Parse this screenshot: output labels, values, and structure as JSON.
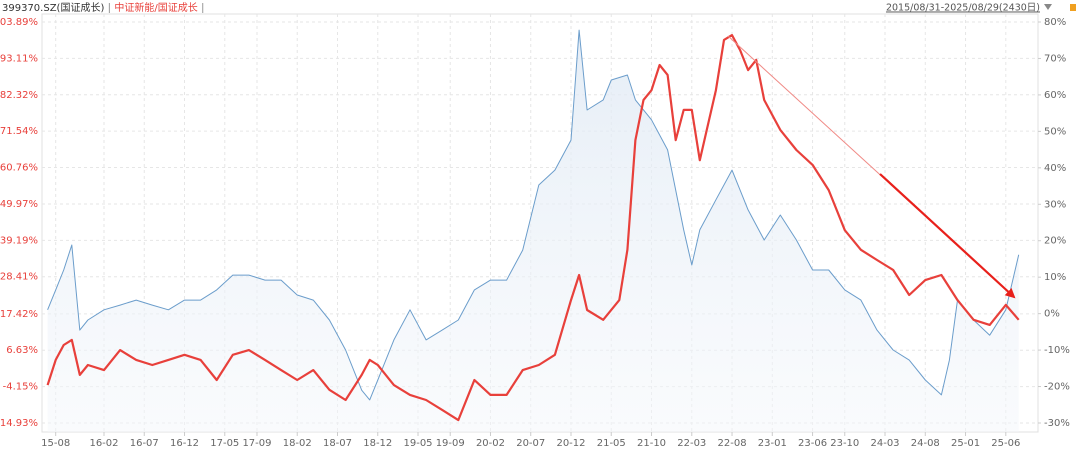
{
  "chart_data": {
    "type": "line",
    "date_range": "2015/08/31-2025/08/29(2430日)",
    "xlim": [
      -1.7,
      122
    ],
    "xticks": [
      {
        "value": 0,
        "label": "15-08"
      },
      {
        "value": 6,
        "label": "16-02"
      },
      {
        "value": 11,
        "label": "16-07"
      },
      {
        "value": 16,
        "label": "16-12"
      },
      {
        "value": 21,
        "label": "17-05"
      },
      {
        "value": 25,
        "label": "17-09"
      },
      {
        "value": 30,
        "label": "18-02"
      },
      {
        "value": 35,
        "label": "18-07"
      },
      {
        "value": 40,
        "label": "18-12"
      },
      {
        "value": 45,
        "label": "19-05"
      },
      {
        "value": 49,
        "label": "19-09"
      },
      {
        "value": 54,
        "label": "20-02"
      },
      {
        "value": 59,
        "label": "20-07"
      },
      {
        "value": 64,
        "label": "20-12"
      },
      {
        "value": 69,
        "label": "21-05"
      },
      {
        "value": 74,
        "label": "21-10"
      },
      {
        "value": 79,
        "label": "22-03"
      },
      {
        "value": 84,
        "label": "22-08"
      },
      {
        "value": 89,
        "label": "23-01"
      },
      {
        "value": 94,
        "label": "23-06"
      },
      {
        "value": 98,
        "label": "23-10"
      },
      {
        "value": 103,
        "label": "24-03"
      },
      {
        "value": 108,
        "label": "24-08"
      },
      {
        "value": 113,
        "label": "25-01"
      },
      {
        "value": 118,
        "label": "25-06"
      }
    ],
    "ylim": [
      -14.93,
      103.89
    ],
    "yticks": [
      {
        "value": -14.93,
        "label": "-14.93%"
      },
      {
        "value": -4.15,
        "label": "-4.15%"
      },
      {
        "value": 6.63,
        "label": "6.63%"
      },
      {
        "value": 17.42,
        "label": "17.42%"
      },
      {
        "value": 28.41,
        "label": "28.41%"
      },
      {
        "value": 39.19,
        "label": "39.19%"
      },
      {
        "value": 49.97,
        "label": "49.97%"
      },
      {
        "value": 60.76,
        "label": "60.76%"
      },
      {
        "value": 71.54,
        "label": "71.54%"
      },
      {
        "value": 82.32,
        "label": "82.32%"
      },
      {
        "value": 93.11,
        "label": "93.11%"
      },
      {
        "value": 103.89,
        "label": "103.89%"
      }
    ],
    "y2lim": [
      -30,
      80
    ],
    "y2ticks": [
      {
        "value": -30,
        "label": "-30%"
      },
      {
        "value": -20,
        "label": "-20%"
      },
      {
        "value": -10,
        "label": "-10%"
      },
      {
        "value": 0,
        "label": "0%"
      },
      {
        "value": 10,
        "label": "10%"
      },
      {
        "value": 20,
        "label": "20%"
      },
      {
        "value": 30,
        "label": "30%"
      },
      {
        "value": 40,
        "label": "40%"
      },
      {
        "value": 50,
        "label": "50%"
      },
      {
        "value": 60,
        "label": "60%"
      },
      {
        "value": 70,
        "label": "70%"
      },
      {
        "value": 80,
        "label": "80%"
      }
    ],
    "grid": true,
    "series": [
      {
        "name": "399370.SZ(国证成长)",
        "color": "#6b9dcb",
        "area": true,
        "axis": "y",
        "x": [
          -1,
          0,
          1,
          2,
          3,
          4,
          6,
          8,
          10,
          12,
          14,
          16,
          18,
          20,
          22,
          24,
          26,
          28,
          30,
          32,
          34,
          36,
          38,
          39,
          40,
          42,
          44,
          46,
          48,
          50,
          52,
          54,
          56,
          58,
          60,
          62,
          64,
          65,
          66,
          68,
          69,
          71,
          72,
          74,
          76,
          78,
          79,
          80,
          82,
          84,
          86,
          88,
          90,
          92,
          94,
          96,
          98,
          100,
          102,
          104,
          106,
          108,
          110,
          111,
          112,
          114,
          116,
          118,
          119.6
        ],
        "values": [
          18.6,
          24.5,
          30.4,
          37.8,
          12.6,
          15.6,
          18.6,
          20.0,
          21.5,
          20.0,
          18.6,
          21.5,
          21.5,
          24.5,
          28.9,
          28.9,
          27.4,
          27.4,
          23.0,
          21.5,
          15.6,
          6.7,
          -5.2,
          -8.1,
          -2.2,
          9.7,
          18.6,
          9.7,
          12.6,
          15.6,
          24.5,
          27.4,
          27.4,
          36.3,
          55.6,
          60.0,
          68.9,
          101.5,
          77.8,
          80.8,
          86.7,
          88.2,
          80.8,
          74.9,
          66.0,
          42.3,
          31.9,
          42.3,
          51.2,
          60.0,
          48.2,
          39.3,
          46.7,
          39.3,
          30.4,
          30.4,
          24.5,
          21.5,
          12.6,
          6.7,
          3.7,
          -2.2,
          -6.6,
          3.7,
          21.5,
          15.6,
          11.1,
          18.6,
          34.9
        ]
      },
      {
        "name": "中证新能/国证成长",
        "color": "#e8403b",
        "area": false,
        "axis": "y2",
        "x": [
          -1,
          0,
          1,
          2,
          3,
          4,
          6,
          8,
          10,
          12,
          14,
          16,
          18,
          20,
          22,
          24,
          26,
          28,
          30,
          32,
          34,
          36,
          38,
          39,
          40,
          42,
          44,
          46,
          48,
          50,
          52,
          54,
          56,
          58,
          60,
          62,
          64,
          65,
          66,
          68,
          70,
          71,
          72,
          73,
          74,
          75,
          76,
          77,
          78,
          79,
          80,
          82,
          83,
          84,
          85,
          86,
          87,
          88,
          90,
          92,
          94,
          96,
          98,
          100,
          102,
          104,
          106,
          108,
          110,
          112,
          114,
          116,
          118,
          119.6
        ],
        "values": [
          -19.6,
          -12.7,
          -8.6,
          -7.2,
          -16.8,
          -14.1,
          -15.5,
          -10.0,
          -12.7,
          -14.1,
          -12.7,
          -11.3,
          -12.7,
          -18.2,
          -11.3,
          -10.0,
          -12.7,
          -15.5,
          -18.2,
          -15.5,
          -20.9,
          -23.7,
          -16.8,
          -12.7,
          -14.1,
          -19.6,
          -22.3,
          -23.7,
          -26.4,
          -29.2,
          -18.2,
          -22.3,
          -22.3,
          -15.5,
          -14.1,
          -11.3,
          3.7,
          10.6,
          1.0,
          -1.7,
          3.7,
          17.5,
          47.6,
          58.6,
          61.3,
          68.2,
          65.5,
          47.6,
          55.9,
          55.9,
          42.1,
          61.3,
          75.1,
          76.4,
          72.3,
          66.8,
          69.6,
          58.6,
          50.4,
          44.9,
          40.8,
          33.9,
          22.9,
          17.5,
          14.7,
          12.0,
          5.1,
          9.2,
          10.6,
          3.7,
          -1.7,
          -3.1,
          2.4,
          -1.7
        ]
      }
    ]
  }
}
